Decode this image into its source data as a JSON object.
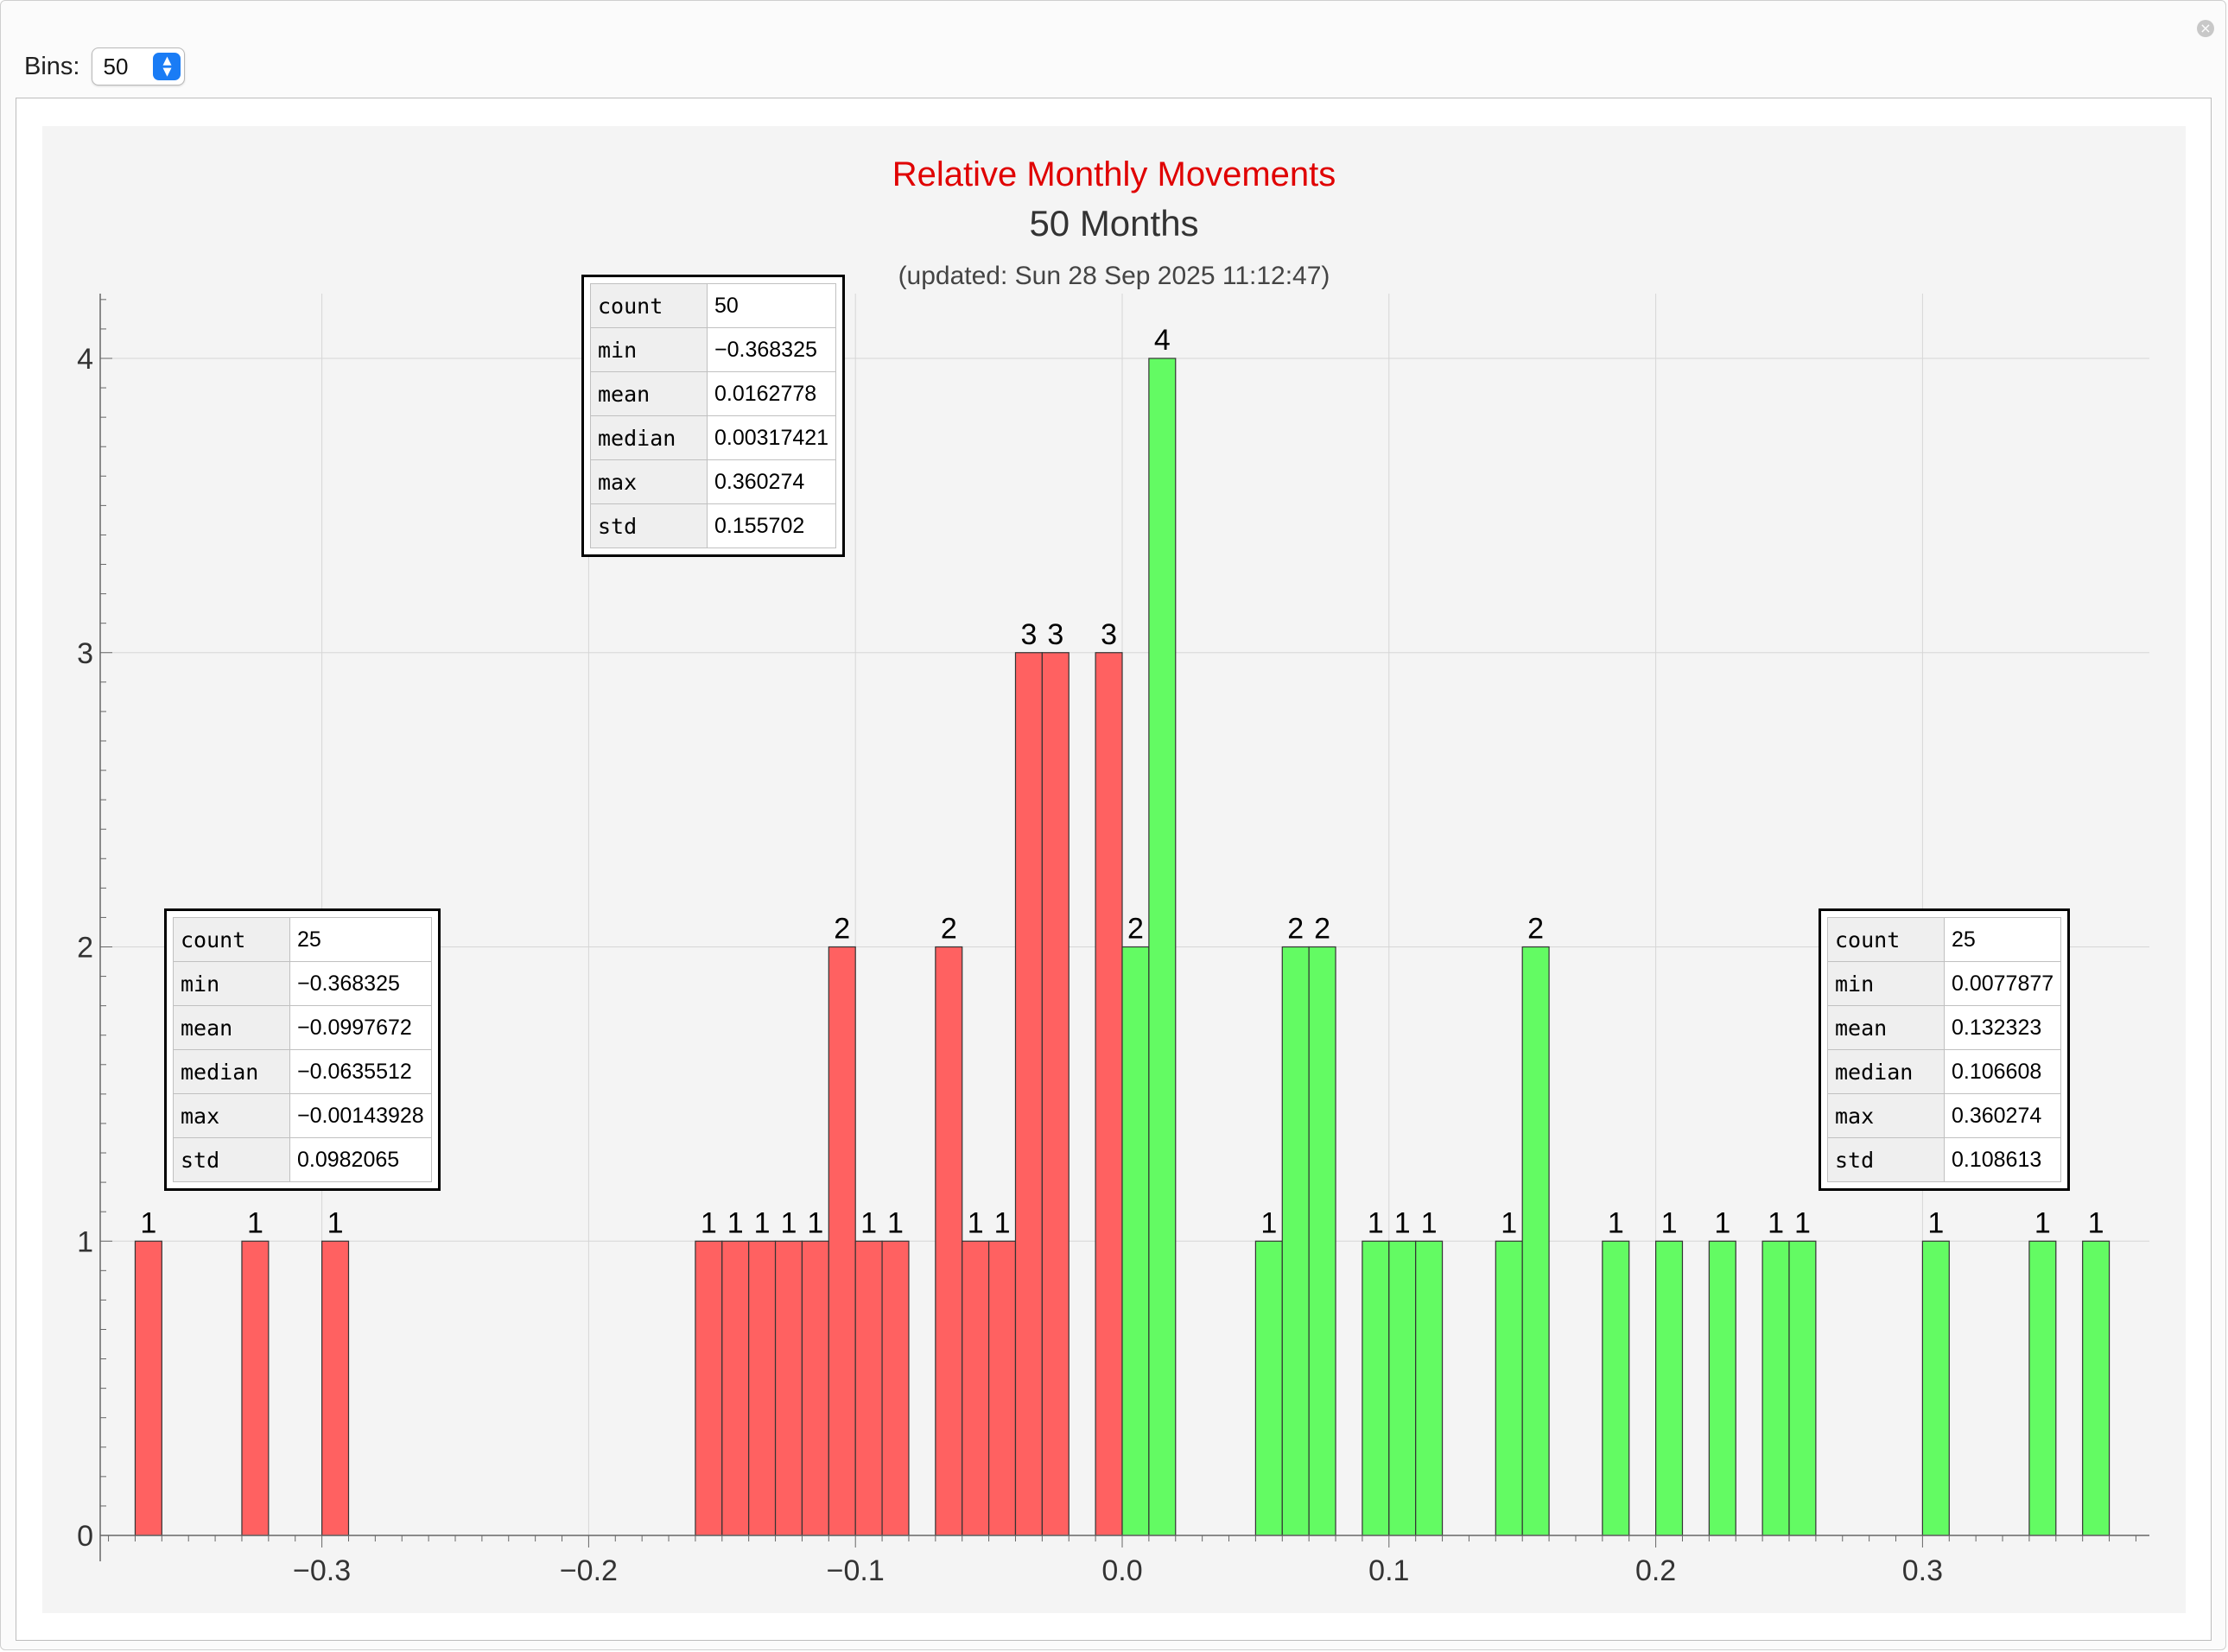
{
  "controls": {
    "bins_label": "Bins:",
    "bins_value": "50"
  },
  "chart_data": {
    "type": "bar",
    "title": "Relative Monthly Movements",
    "subtitle": "50 Months",
    "updated": "(updated: Sun 28 Sep 2025 11:12:47)",
    "xlabel": "",
    "ylabel": "",
    "xlim": [
      -0.385,
      0.385
    ],
    "ylim": [
      0,
      4.2
    ],
    "bin_width": 0.01,
    "x_ticks": [
      -0.3,
      -0.2,
      -0.1,
      0.0,
      0.1,
      0.2,
      0.3
    ],
    "x_tick_labels": [
      "−0.3",
      "−0.2",
      "−0.1",
      "0.0",
      "0.1",
      "0.2",
      "0.3"
    ],
    "y_ticks": [
      0,
      1,
      2,
      3,
      4
    ],
    "y_tick_labels": [
      "0",
      "1",
      "2",
      "3",
      "4"
    ],
    "grid": true,
    "colors": {
      "negative": "#ff6161",
      "positive": "#63fb63"
    },
    "series": [
      {
        "color_key": "negative",
        "bins": [
          {
            "x0": -0.37,
            "x1": -0.36,
            "count": 1
          },
          {
            "x0": -0.33,
            "x1": -0.32,
            "count": 1
          },
          {
            "x0": -0.3,
            "x1": -0.29,
            "count": 1
          },
          {
            "x0": -0.16,
            "x1": -0.15,
            "count": 1
          },
          {
            "x0": -0.15,
            "x1": -0.14,
            "count": 1
          },
          {
            "x0": -0.14,
            "x1": -0.13,
            "count": 1
          },
          {
            "x0": -0.13,
            "x1": -0.12,
            "count": 1
          },
          {
            "x0": -0.12,
            "x1": -0.11,
            "count": 1
          },
          {
            "x0": -0.11,
            "x1": -0.1,
            "count": 2
          },
          {
            "x0": -0.1,
            "x1": -0.09,
            "count": 1
          },
          {
            "x0": -0.09,
            "x1": -0.08,
            "count": 1
          },
          {
            "x0": -0.07,
            "x1": -0.06,
            "count": 2
          },
          {
            "x0": -0.06,
            "x1": -0.05,
            "count": 1
          },
          {
            "x0": -0.05,
            "x1": -0.04,
            "count": 1
          },
          {
            "x0": -0.04,
            "x1": -0.03,
            "count": 3
          },
          {
            "x0": -0.03,
            "x1": -0.02,
            "count": 3
          },
          {
            "x0": -0.01,
            "x1": 0.0,
            "count": 3
          }
        ]
      },
      {
        "color_key": "positive",
        "bins": [
          {
            "x0": 0.0,
            "x1": 0.01,
            "count": 2
          },
          {
            "x0": 0.01,
            "x1": 0.02,
            "count": 4
          },
          {
            "x0": 0.05,
            "x1": 0.06,
            "count": 1
          },
          {
            "x0": 0.06,
            "x1": 0.07,
            "count": 2
          },
          {
            "x0": 0.07,
            "x1": 0.08,
            "count": 2
          },
          {
            "x0": 0.09,
            "x1": 0.1,
            "count": 1
          },
          {
            "x0": 0.1,
            "x1": 0.11,
            "count": 1
          },
          {
            "x0": 0.11,
            "x1": 0.12,
            "count": 1
          },
          {
            "x0": 0.14,
            "x1": 0.15,
            "count": 1
          },
          {
            "x0": 0.15,
            "x1": 0.16,
            "count": 2
          },
          {
            "x0": 0.18,
            "x1": 0.19,
            "count": 1
          },
          {
            "x0": 0.2,
            "x1": 0.21,
            "count": 1
          },
          {
            "x0": 0.22,
            "x1": 0.23,
            "count": 1
          },
          {
            "x0": 0.24,
            "x1": 0.25,
            "count": 1
          },
          {
            "x0": 0.25,
            "x1": 0.26,
            "count": 1
          },
          {
            "x0": 0.3,
            "x1": 0.31,
            "count": 1
          },
          {
            "x0": 0.34,
            "x1": 0.35,
            "count": 1
          },
          {
            "x0": 0.36,
            "x1": 0.37,
            "count": 1
          }
        ]
      }
    ]
  },
  "stats_tables": {
    "overall": [
      {
        "key": "count",
        "value": "50"
      },
      {
        "key": "min",
        "value": "−0.368325"
      },
      {
        "key": "mean",
        "value": "0.0162778"
      },
      {
        "key": "median",
        "value": "0.00317421"
      },
      {
        "key": "max",
        "value": "0.360274"
      },
      {
        "key": "std",
        "value": "0.155702"
      }
    ],
    "negative": [
      {
        "key": "count",
        "value": "25"
      },
      {
        "key": "min",
        "value": "−0.368325"
      },
      {
        "key": "mean",
        "value": "−0.0997672"
      },
      {
        "key": "median",
        "value": "−0.0635512"
      },
      {
        "key": "max",
        "value": "−0.00143928"
      },
      {
        "key": "std",
        "value": "0.0982065"
      }
    ],
    "positive": [
      {
        "key": "count",
        "value": "25"
      },
      {
        "key": "min",
        "value": "0.0077877"
      },
      {
        "key": "mean",
        "value": "0.132323"
      },
      {
        "key": "median",
        "value": "0.106608"
      },
      {
        "key": "max",
        "value": "0.360274"
      },
      {
        "key": "std",
        "value": "0.108613"
      }
    ]
  }
}
